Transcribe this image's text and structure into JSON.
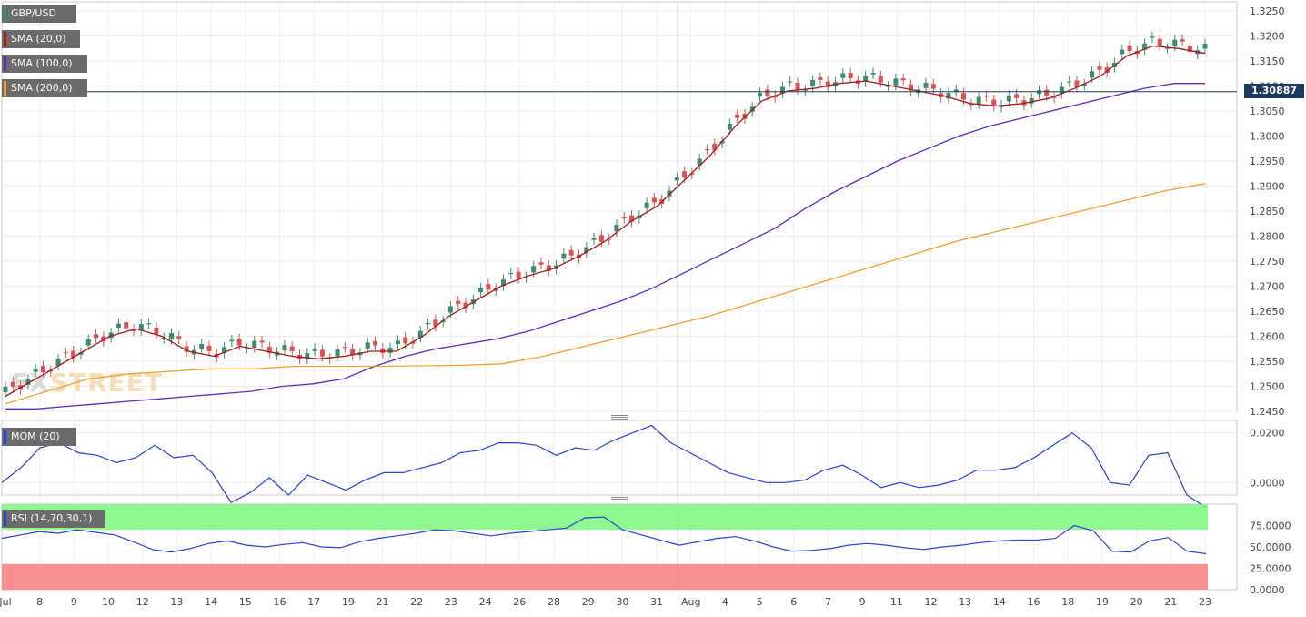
{
  "chart_data": [
    {
      "type": "candlestick",
      "title": "GBP/USD",
      "ylim": [
        1.245,
        1.325
      ],
      "y_ticks": [
        "1.3250",
        "1.3200",
        "1.3150",
        "1.3100",
        "1.3050",
        "1.3000",
        "1.2950",
        "1.2900",
        "1.2850",
        "1.2800",
        "1.2750",
        "1.2700",
        "1.2650",
        "1.2600",
        "1.2550",
        "1.2500",
        "1.2450"
      ],
      "x_ticks": [
        "Jul",
        "8",
        "9",
        "10",
        "12",
        "13",
        "14",
        "15",
        "16",
        "17",
        "19",
        "21",
        "22",
        "23",
        "24",
        "26",
        "28",
        "29",
        "30",
        "31",
        "Aug",
        "4",
        "5",
        "6",
        "7",
        "9",
        "11",
        "12",
        "13",
        "14",
        "16",
        "18",
        "19",
        "20",
        "21",
        "23"
      ],
      "last_price": "1.30887",
      "series": [
        {
          "name": "SMA (20,0)",
          "color": "#a01c1c",
          "values": [
            1.248,
            1.251,
            1.254,
            1.257,
            1.26,
            1.2615,
            1.26,
            1.257,
            1.256,
            1.258,
            1.257,
            1.256,
            1.2555,
            1.256,
            1.257,
            1.257,
            1.26,
            1.264,
            1.267,
            1.27,
            1.272,
            1.2735,
            1.276,
            1.279,
            1.283,
            1.286,
            1.291,
            1.296,
            1.302,
            1.307,
            1.309,
            1.3095,
            1.3105,
            1.311,
            1.31,
            1.309,
            1.308,
            1.3065,
            1.306,
            1.3065,
            1.3075,
            1.3095,
            1.312,
            1.316,
            1.318,
            1.3175,
            1.3165
          ]
        },
        {
          "name": "SMA (100,0)",
          "color": "#5b2bbf",
          "values": [
            1.2455,
            1.2455,
            1.246,
            1.2465,
            1.247,
            1.2475,
            1.248,
            1.2485,
            1.249,
            1.25,
            1.2505,
            1.2515,
            1.254,
            1.256,
            1.2575,
            1.2585,
            1.2595,
            1.261,
            1.263,
            1.265,
            1.267,
            1.2695,
            1.2725,
            1.2755,
            1.2785,
            1.2815,
            1.2855,
            1.289,
            1.292,
            1.295,
            1.2975,
            1.3,
            1.302,
            1.3035,
            1.305,
            1.3065,
            1.308,
            1.3095,
            1.3105,
            1.3105
          ]
        },
        {
          "name": "SMA (200,0)",
          "color": "#f2a12e",
          "values": [
            1.2465,
            1.249,
            1.2515,
            1.2525,
            1.253,
            1.2535,
            1.2535,
            1.254,
            1.254,
            1.254,
            1.2541,
            1.2542,
            1.2545,
            1.256,
            1.258,
            1.26,
            1.262,
            1.264,
            1.2665,
            1.269,
            1.2715,
            1.274,
            1.2765,
            1.279,
            1.281,
            1.283,
            1.285,
            1.287,
            1.289,
            1.2905
          ]
        }
      ]
    },
    {
      "type": "line",
      "title": "MOM (20)",
      "ylim": [
        -0.005,
        0.025
      ],
      "y_ticks": [
        "0.0200",
        "0.0000"
      ],
      "series": [
        {
          "name": "MOM (20)",
          "color": "#2a3fd6",
          "values": [
            0.0,
            0.006,
            0.014,
            0.016,
            0.012,
            0.011,
            0.008,
            0.01,
            0.015,
            0.01,
            0.011,
            0.004,
            -0.008,
            -0.004,
            0.002,
            -0.005,
            0.003,
            0.0,
            -0.003,
            0.001,
            0.004,
            0.004,
            0.006,
            0.008,
            0.012,
            0.013,
            0.016,
            0.016,
            0.015,
            0.011,
            0.014,
            0.013,
            0.017,
            0.02,
            0.023,
            0.016,
            0.012,
            0.008,
            0.004,
            0.002,
            0.0,
            0.0,
            0.001,
            0.005,
            0.007,
            0.003,
            -0.002,
            0.0,
            -0.002,
            -0.001,
            0.001,
            0.005,
            0.005,
            0.006,
            0.01,
            0.015,
            0.02,
            0.014,
            0.0,
            -0.001,
            0.011,
            0.012,
            -0.005,
            -0.01
          ]
        }
      ]
    },
    {
      "type": "line",
      "title": "RSI (14,70,30,1)",
      "ylim": [
        0,
        100
      ],
      "y_ticks": [
        "75.0000",
        "50.0000",
        "25.0000",
        "0.0000"
      ],
      "overbought": 70,
      "oversold": 30,
      "series": [
        {
          "name": "RSI",
          "color": "#2a3fd6",
          "values": [
            60,
            64,
            68,
            66,
            70,
            67,
            64,
            56,
            47,
            44,
            48,
            54,
            57,
            52,
            50,
            53,
            55,
            50,
            49,
            56,
            60,
            63,
            66,
            70,
            69,
            66,
            63,
            66,
            68,
            70,
            72,
            84,
            85,
            70,
            64,
            58,
            52,
            56,
            60,
            62,
            57,
            50,
            45,
            46,
            48,
            52,
            54,
            52,
            49,
            47,
            50,
            52,
            55,
            57,
            58,
            58,
            60,
            75,
            69,
            45,
            44,
            57,
            61,
            45,
            42
          ]
        }
      ]
    }
  ],
  "legend": {
    "pair": "GBP/USD",
    "sma20": "SMA (20,0)",
    "sma100": "SMA (100,0)",
    "sma200": "SMA (200,0)",
    "mom": "MOM (20)",
    "rsi": "RSI (14,70,30,1)"
  },
  "watermark": {
    "part1": "FX",
    "part2": "STREET"
  },
  "colors": {
    "bull": "#3d8b70",
    "bear": "#d9534f",
    "sma20": "#a01c1c",
    "sma100": "#5b2bbf",
    "sma200": "#f2a12e",
    "indicator": "#2a3fd6",
    "overbought_zone": "#7cf77c",
    "oversold_zone": "#f87c7c",
    "price_tag": "#1f3a5f"
  }
}
